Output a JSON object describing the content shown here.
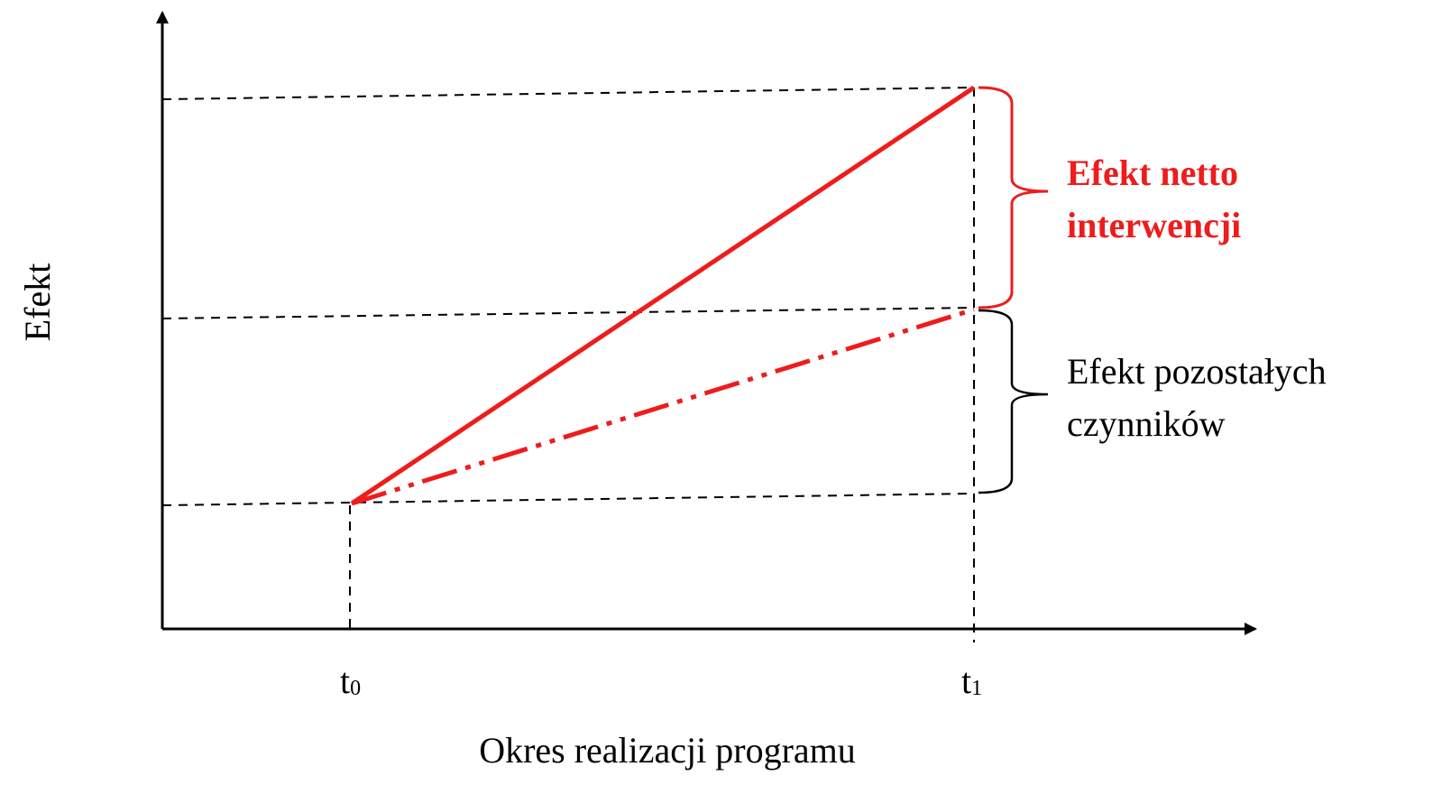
{
  "axes": {
    "y_label": "Efekt",
    "x_label": "Okres realizacji programu"
  },
  "time_points": [
    {
      "base": "t",
      "sub": "0"
    },
    {
      "base": "t",
      "sub": "1"
    }
  ],
  "annotations": [
    {
      "lines": [
        "Efekt netto",
        "interwencji"
      ]
    },
    {
      "lines": [
        "Efekt pozostałych",
        "czynników"
      ]
    }
  ]
}
